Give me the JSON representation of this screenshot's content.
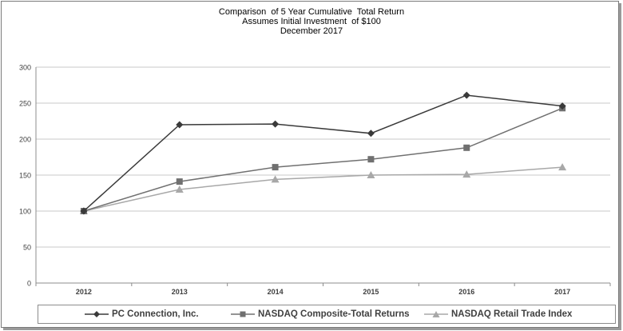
{
  "titles": {
    "line1": "Comparison  of 5 Year Cumulative  Total Return",
    "line2": "Assumes Initial Investment  of $100",
    "line3": "December 2017"
  },
  "chart_data": {
    "type": "line",
    "title": "Comparison  of 5 Year Cumulative  Total Return",
    "subtitle": "Assumes Initial Investment  of $100 / December 2017",
    "xlabel": "",
    "ylabel": "",
    "categories": [
      "2012",
      "2013",
      "2014",
      "2015",
      "2016",
      "2017"
    ],
    "ylim": [
      0,
      300
    ],
    "yticks": [
      0,
      50,
      100,
      150,
      200,
      250,
      300
    ],
    "grid": true,
    "legend_position": "bottom",
    "series": [
      {
        "name": "PC Connection, Inc.",
        "marker": "diamond",
        "color": "#3a3a3a",
        "values": [
          100,
          220,
          221,
          208,
          261,
          246
        ]
      },
      {
        "name": "NASDAQ Composite-Total Returns",
        "marker": "square",
        "color": "#707070",
        "values": [
          100,
          141,
          161,
          172,
          188,
          243
        ]
      },
      {
        "name": "NASDAQ Retail Trade Index",
        "marker": "triangle",
        "color": "#a8a8a8",
        "values": [
          100,
          130,
          144,
          150,
          151,
          161
        ]
      }
    ]
  }
}
